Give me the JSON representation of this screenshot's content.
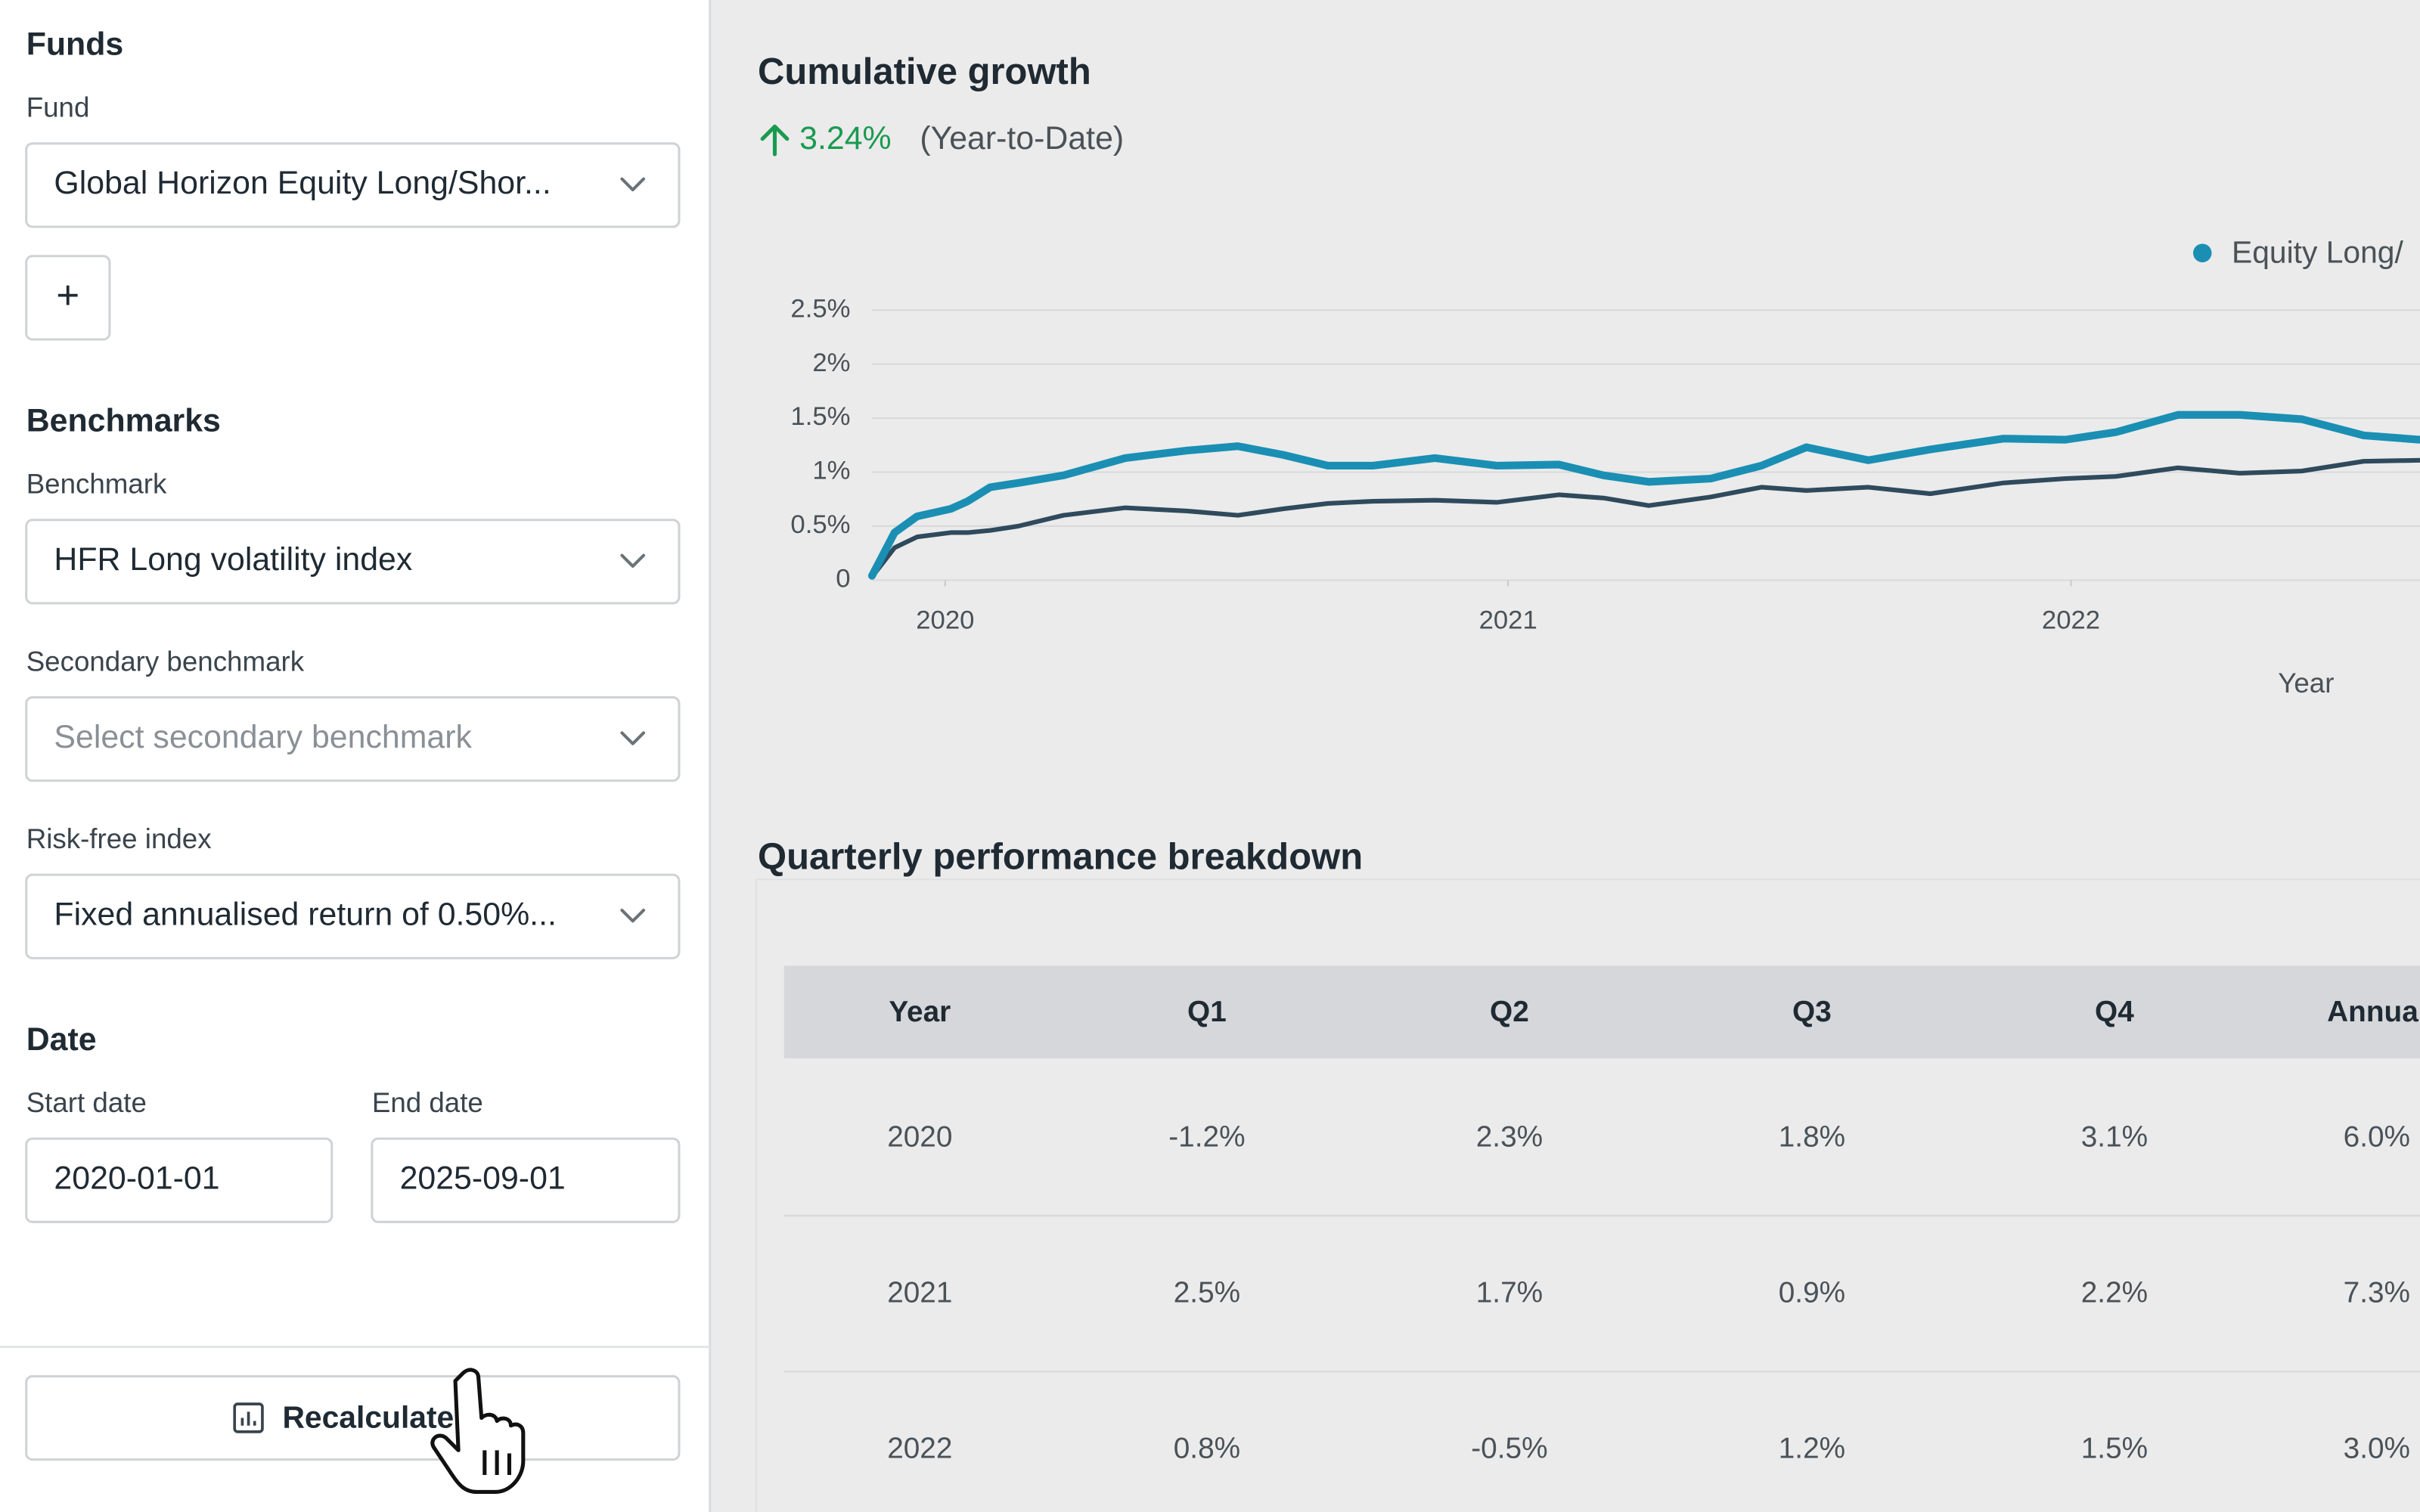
{
  "sidebar": {
    "funds_heading": "Funds",
    "fund_label": "Fund",
    "fund_value": "Global Horizon Equity Long/Shor...",
    "add_button": "+",
    "benchmarks_heading": "Benchmarks",
    "benchmark_label": "Benchmark",
    "benchmark_value": "HFR Long volatility index",
    "secondary_label": "Secondary benchmark",
    "secondary_placeholder": "Select secondary benchmark",
    "riskfree_label": "Risk-free index",
    "riskfree_value": "Fixed annualised return of 0.50%...",
    "date_heading": "Date",
    "start_label": "Start date",
    "start_value": "2020-01-01",
    "end_label": "End date",
    "end_value": "2025-09-01",
    "button": "Recalculate"
  },
  "chart_data": {
    "type": "line",
    "title": "Cumulative growth",
    "ytd_change": "3.24%",
    "ytd_period": "(Year-to-Date)",
    "x_label": "Year",
    "x": [
      2019.87,
      2019.91,
      2019.95,
      2020.01,
      2020.04,
      2020.08,
      2020.13,
      2020.21,
      2020.32,
      2020.43,
      2020.52,
      2020.6,
      2020.68,
      2020.76,
      2020.87,
      2020.98,
      2021.09,
      2021.17,
      2021.25,
      2021.36,
      2021.45,
      2021.53,
      2021.64,
      2021.75,
      2021.88,
      2021.99,
      2022.08,
      2022.19,
      2022.3,
      2022.41,
      2022.52,
      2022.62
    ],
    "series": [
      {
        "name": "Equity Long/",
        "color": "#1a8fb3",
        "values": [
          0.04,
          0.44,
          0.59,
          0.66,
          0.73,
          0.86,
          0.9,
          0.97,
          1.13,
          1.2,
          1.24,
          1.16,
          1.06,
          1.06,
          1.13,
          1.06,
          1.07,
          0.97,
          0.91,
          0.94,
          1.06,
          1.23,
          1.11,
          1.21,
          1.31,
          1.3,
          1.37,
          1.53,
          1.53,
          1.49,
          1.34,
          1.3
        ]
      },
      {
        "color": "#2f4a5c",
        "values": [
          0.03,
          0.3,
          0.4,
          0.44,
          0.44,
          0.46,
          0.5,
          0.6,
          0.67,
          0.64,
          0.6,
          0.66,
          0.71,
          0.73,
          0.74,
          0.72,
          0.79,
          0.76,
          0.69,
          0.77,
          0.86,
          0.83,
          0.86,
          0.8,
          0.9,
          0.94,
          0.96,
          1.04,
          0.99,
          1.01,
          1.1,
          1.11
        ]
      }
    ],
    "xlim": [
      2019.87,
      2022.62
    ],
    "xticks": [
      2020,
      2021,
      2022
    ],
    "ylim": [
      0,
      2.5
    ],
    "yticks": [
      0,
      {
        "value": 0.5,
        "label": "0.5%"
      },
      {
        "value": 1,
        "label": "1%"
      },
      {
        "value": 1.5,
        "label": "1.5%"
      },
      {
        "value": 2,
        "label": "2%"
      },
      {
        "value": 2.5,
        "label": "2.5%"
      }
    ],
    "grid": true
  },
  "table": {
    "title": "Quarterly performance breakdown",
    "header": [
      "Year",
      "Q1",
      "Q2",
      "Q3",
      "Q4",
      "Annual"
    ],
    "rows": [
      [
        "2020",
        "-1.2%",
        "2.3%",
        "1.8%",
        "3.1%",
        "6.0%"
      ],
      [
        "2021",
        "2.5%",
        "1.7%",
        "0.9%",
        "2.2%",
        "7.3%"
      ],
      [
        "2022",
        "0.8%",
        "-0.5%",
        "1.2%",
        "1.5%",
        "3.0%"
      ]
    ]
  }
}
